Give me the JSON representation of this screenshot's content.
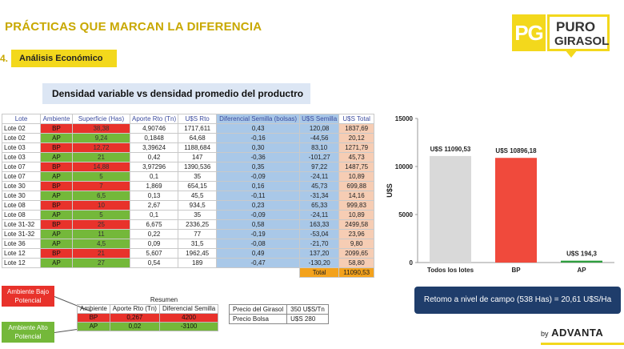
{
  "header": {
    "title": "PRÁCTICAS QUE MARCAN LA DIFERENCIA",
    "logo_pg": "PG",
    "logo_line1": "PURO",
    "logo_line2": "GIRASOL"
  },
  "section": {
    "number": "4.",
    "label": "Análisis Económico"
  },
  "subtitle": "Densidad variable vs densidad promedio del productro",
  "table": {
    "headers": [
      "Lote",
      "Ambiente",
      "Superficie (Has)",
      "Aporte Rto (Tn)",
      "U$S Rto",
      "Diferencial Semilla (bolsas)",
      "U$S Semilla",
      "U$S Total"
    ],
    "rows": [
      {
        "lote": "Lote 02",
        "amb": "BP",
        "sup": "38,38",
        "apo": "4,90746",
        "uss": "1717,611",
        "dif": "0,43",
        "sem": "120,08",
        "tot": "1837,69"
      },
      {
        "lote": "Lote 02",
        "amb": "AP",
        "sup": "9,24",
        "apo": "0,1848",
        "uss": "64,68",
        "dif": "-0,16",
        "sem": "-44,56",
        "tot": "20,12"
      },
      {
        "lote": "Lote 03",
        "amb": "BP",
        "sup": "12,72",
        "apo": "3,39624",
        "uss": "1188,684",
        "dif": "0,30",
        "sem": "83,10",
        "tot": "1271,79"
      },
      {
        "lote": "Lote 03",
        "amb": "AP",
        "sup": "21",
        "apo": "0,42",
        "uss": "147",
        "dif": "-0,36",
        "sem": "-101,27",
        "tot": "45,73"
      },
      {
        "lote": "Lote 07",
        "amb": "BP",
        "sup": "14,88",
        "apo": "3,97296",
        "uss": "1390,536",
        "dif": "0,35",
        "sem": "97,22",
        "tot": "1487,75"
      },
      {
        "lote": "Lote 07",
        "amb": "AP",
        "sup": "5",
        "apo": "0,1",
        "uss": "35",
        "dif": "-0,09",
        "sem": "-24,11",
        "tot": "10,89"
      },
      {
        "lote": "Lote 30",
        "amb": "BP",
        "sup": "7",
        "apo": "1,869",
        "uss": "654,15",
        "dif": "0,16",
        "sem": "45,73",
        "tot": "699,88"
      },
      {
        "lote": "Lote 30",
        "amb": "AP",
        "sup": "6,5",
        "apo": "0,13",
        "uss": "45,5",
        "dif": "-0,11",
        "sem": "-31,34",
        "tot": "14,16"
      },
      {
        "lote": "Lote 08",
        "amb": "BP",
        "sup": "10",
        "apo": "2,67",
        "uss": "934,5",
        "dif": "0,23",
        "sem": "65,33",
        "tot": "999,83"
      },
      {
        "lote": "Lote 08",
        "amb": "AP",
        "sup": "5",
        "apo": "0,1",
        "uss": "35",
        "dif": "-0,09",
        "sem": "-24,11",
        "tot": "10,89"
      },
      {
        "lote": "Lote 31-32",
        "amb": "BP",
        "sup": "25",
        "apo": "6,675",
        "uss": "2336,25",
        "dif": "0,58",
        "sem": "163,33",
        "tot": "2499,58"
      },
      {
        "lote": "Lote 31-32",
        "amb": "AP",
        "sup": "11",
        "apo": "0,22",
        "uss": "77",
        "dif": "-0,19",
        "sem": "-53,04",
        "tot": "23,96"
      },
      {
        "lote": "Lote 36",
        "amb": "AP",
        "sup": "4,5",
        "apo": "0,09",
        "uss": "31,5",
        "dif": "-0,08",
        "sem": "-21,70",
        "tot": "9,80"
      },
      {
        "lote": "Lote 12",
        "amb": "BP",
        "sup": "21",
        "apo": "5,607",
        "uss": "1962,45",
        "dif": "0,49",
        "sem": "137,20",
        "tot": "2099,65"
      },
      {
        "lote": "Lote 12",
        "amb": "AP",
        "sup": "27",
        "apo": "0,54",
        "uss": "189",
        "dif": "-0,47",
        "sem": "-130,20",
        "tot": "58,80"
      }
    ],
    "total_label": "Total",
    "total_value": "11090,53"
  },
  "legend": {
    "bp_label": "Ambiente Bajo Potencial",
    "ap_label": "Ambiente Alto Potencial"
  },
  "resumen": {
    "caption": "Resumen",
    "headers": [
      "Ambiente",
      "Aporte Rto (Tn)",
      "Diferencial Semilla"
    ],
    "rows": [
      {
        "amb": "BP",
        "apo": "0,267",
        "dif": "4200"
      },
      {
        "amb": "AP",
        "apo": "0,02",
        "dif": "-3100"
      }
    ]
  },
  "prices": {
    "rows": [
      {
        "label": "Precio del Girasol",
        "value": "350 U$S/Tn"
      },
      {
        "label": "Precio Bolsa",
        "value": "U$S 280"
      }
    ]
  },
  "chart_data": {
    "type": "bar",
    "categories": [
      "Todos los lotes",
      "BP",
      "AP"
    ],
    "values": [
      11090.53,
      10896.18,
      194.3
    ],
    "data_labels": [
      "U$S 11090,53",
      "U$S 10896,18",
      "U$S 194,3"
    ],
    "colors": [
      "#d9d9d9",
      "#f04a3c",
      "#2e9e3e"
    ],
    "ylabel": "U$S",
    "ylim": [
      0,
      15000
    ],
    "yticks": [
      "0",
      "5000",
      "10000",
      "15000"
    ],
    "grid": false
  },
  "retorno": "Retomo a nivel de campo (538 Has) = 20,61 U$S/Ha",
  "footer": {
    "by": "by",
    "brand": "ADVANTA"
  }
}
